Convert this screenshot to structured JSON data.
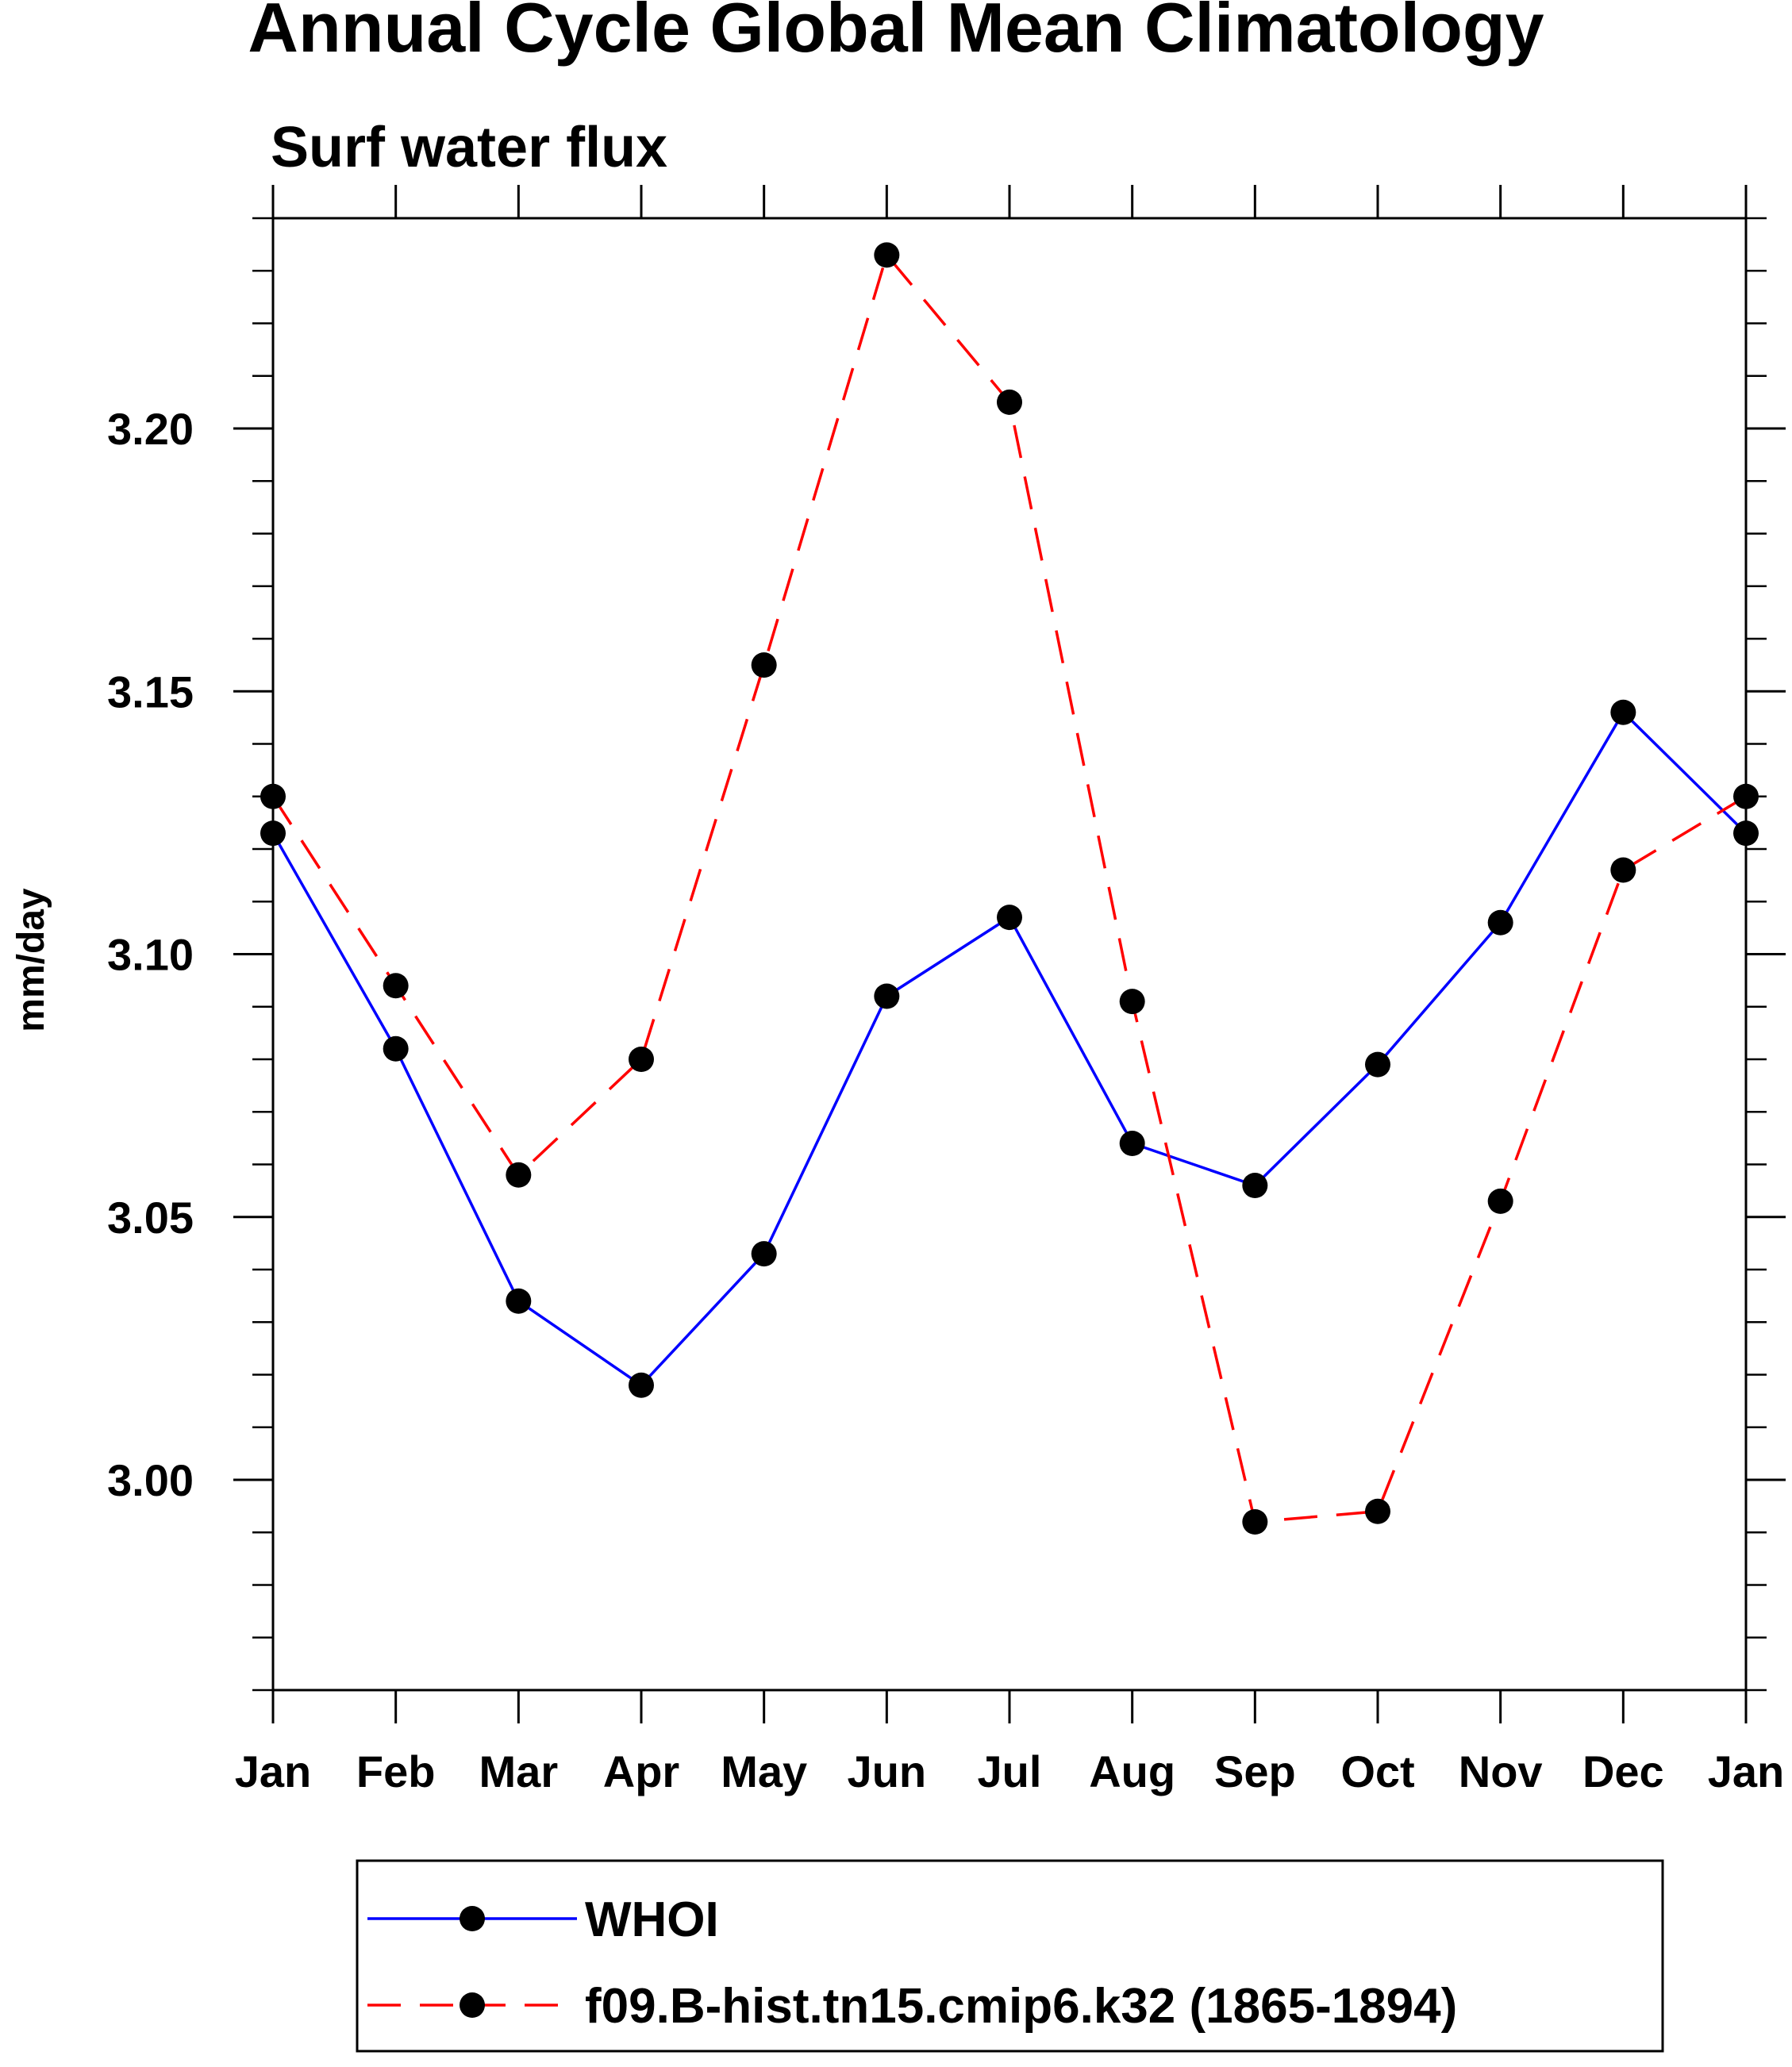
{
  "chart_data": {
    "type": "line",
    "title": "Annual Cycle Global Mean Climatology",
    "subtitle": "Surf water flux",
    "ylabel": "mm/day",
    "xlabel": "",
    "categories": [
      "Jan",
      "Feb",
      "Mar",
      "Apr",
      "May",
      "Jun",
      "Jul",
      "Aug",
      "Sep",
      "Oct",
      "Nov",
      "Dec",
      "Jan"
    ],
    "ylim": [
      2.96,
      3.24
    ],
    "yticks": [
      3.0,
      3.05,
      3.1,
      3.15,
      3.2
    ],
    "ytick_labels": [
      "3.00",
      "3.05",
      "3.10",
      "3.15",
      "3.20"
    ],
    "grid": false,
    "legend_position": "bottom",
    "series": [
      {
        "name": "WHOI",
        "color": "#0000ff",
        "line_style": "solid",
        "marker": "filled-circle",
        "marker_color": "#000000",
        "values": [
          3.123,
          3.082,
          3.034,
          3.018,
          3.043,
          3.092,
          3.107,
          3.064,
          3.056,
          3.079,
          3.106,
          3.146,
          3.123
        ]
      },
      {
        "name": "f09.B-hist.tn15.cmip6.k32 (1865-1894)",
        "color": "#ff0000",
        "line_style": "dashed",
        "marker": "filled-circle",
        "marker_color": "#000000",
        "values": [
          3.13,
          3.094,
          3.058,
          3.08,
          3.155,
          3.233,
          3.205,
          3.091,
          2.992,
          2.994,
          3.053,
          3.116,
          3.13
        ]
      }
    ]
  }
}
